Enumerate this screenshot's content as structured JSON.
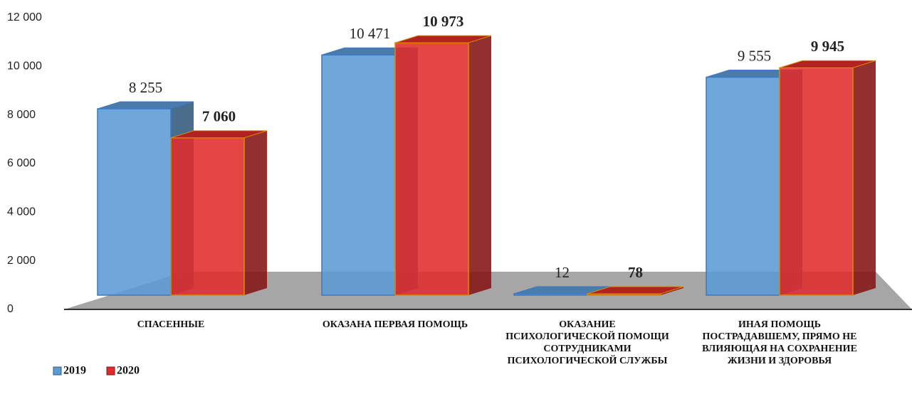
{
  "chart_data": {
    "type": "bar3d",
    "categories": [
      "СПАСЕННЫЕ",
      "ОКАЗАНА ПЕРВАЯ ПОМОЩЬ",
      "ОКАЗАНИЕ ПСИХОЛОГИЧЕСКОЙ ПОМОЩИ СОТРУДНИКАМИ ПСИХОЛОГИЧЕСКОЙ СЛУЖБЫ",
      "ИНАЯ ПОМОЩЬ ПОСТРАДАВШЕМУ, ПРЯМО НЕ ВЛИЯЮЩАЯ НА СОХРАНЕНИЕ ЖИЗНИ И ЗДОРОВЬЯ"
    ],
    "series": [
      {
        "name": "2019",
        "color": "#5b9bd5",
        "values": [
          8255,
          10471,
          12,
          9555
        ],
        "value_labels": [
          "8 255",
          "10 471",
          "12",
          "9 555"
        ]
      },
      {
        "name": "2020",
        "color": "#e02b2b",
        "values": [
          7060,
          10973,
          78,
          9945
        ],
        "value_labels": [
          "7 060",
          "10 973",
          "78",
          "9 945"
        ]
      }
    ],
    "ylim": [
      0,
      12000
    ],
    "yticks": [
      0,
      {
        "value": 2000,
        "label": "2 000"
      },
      {
        "value": 4000,
        "label": "4 000"
      },
      {
        "value": 6000,
        "label": "6 000"
      },
      {
        "value": 8000,
        "label": "8 000"
      },
      {
        "value": 10000,
        "label": "10 000"
      },
      {
        "value": 12000,
        "label": "12 000"
      }
    ],
    "legend": "bottom-left"
  }
}
